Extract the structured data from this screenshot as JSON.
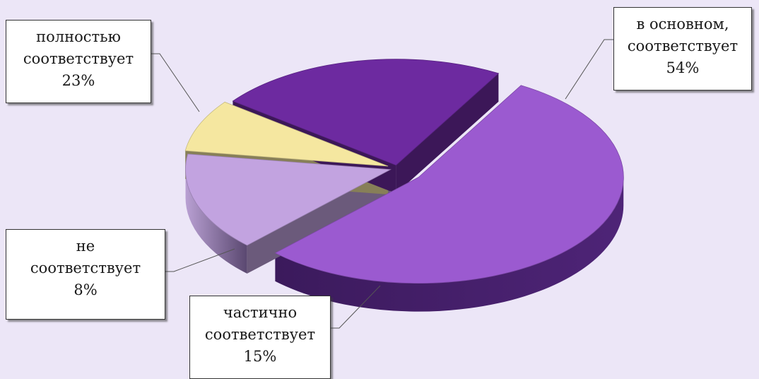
{
  "chart_data": {
    "type": "pie",
    "slices": [
      {
        "label_lines": [
          "в основном,",
          "соответствует"
        ],
        "value_label": "54%",
        "value": 54,
        "color": "#9b5ad0"
      },
      {
        "label_lines": [
          "частично",
          "соответствует"
        ],
        "value_label": "15%",
        "value": 15,
        "color": "#c2a3e0"
      },
      {
        "label_lines": [
          "не",
          "соответствует"
        ],
        "value_label": "8%",
        "value": 8,
        "color": "#f5e7a0"
      },
      {
        "label_lines": [
          "полностью",
          "соответствует"
        ],
        "value_label": "23%",
        "value": 23,
        "color": "#6d2aa0"
      }
    ],
    "title": "",
    "legend": "none",
    "style": "3d-exploded"
  }
}
